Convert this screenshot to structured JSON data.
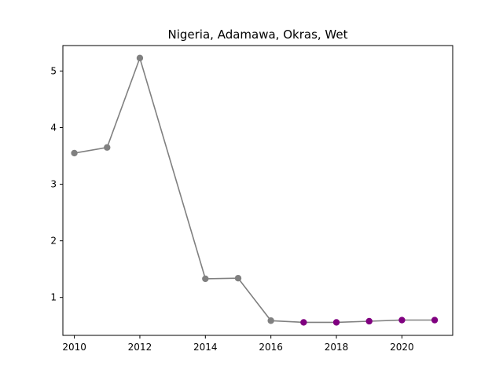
{
  "chart_data": {
    "type": "line",
    "title": "Nigeria, Adamawa, Okras, Wet",
    "xlabel": "",
    "ylabel": "",
    "xlim": [
      2009.65,
      2021.55
    ],
    "ylim": [
      0.33,
      5.45
    ],
    "xticks": [
      2010,
      2012,
      2014,
      2016,
      2018,
      2020
    ],
    "yticks": [
      1,
      2,
      3,
      4,
      5
    ],
    "grid": false,
    "line_color": "#808080",
    "series": [
      {
        "x": [
          2010,
          2011,
          2012,
          2014,
          2015,
          2016,
          2017,
          2018,
          2019,
          2020,
          2021
        ],
        "values": [
          3.55,
          3.65,
          5.23,
          1.33,
          1.34,
          0.59,
          0.56,
          0.56,
          0.58,
          0.6,
          0.6
        ],
        "marker_colors": [
          "#808080",
          "#808080",
          "#808080",
          "#808080",
          "#808080",
          "#808080",
          "#800080",
          "#800080",
          "#800080",
          "#800080",
          "#800080"
        ]
      }
    ]
  }
}
